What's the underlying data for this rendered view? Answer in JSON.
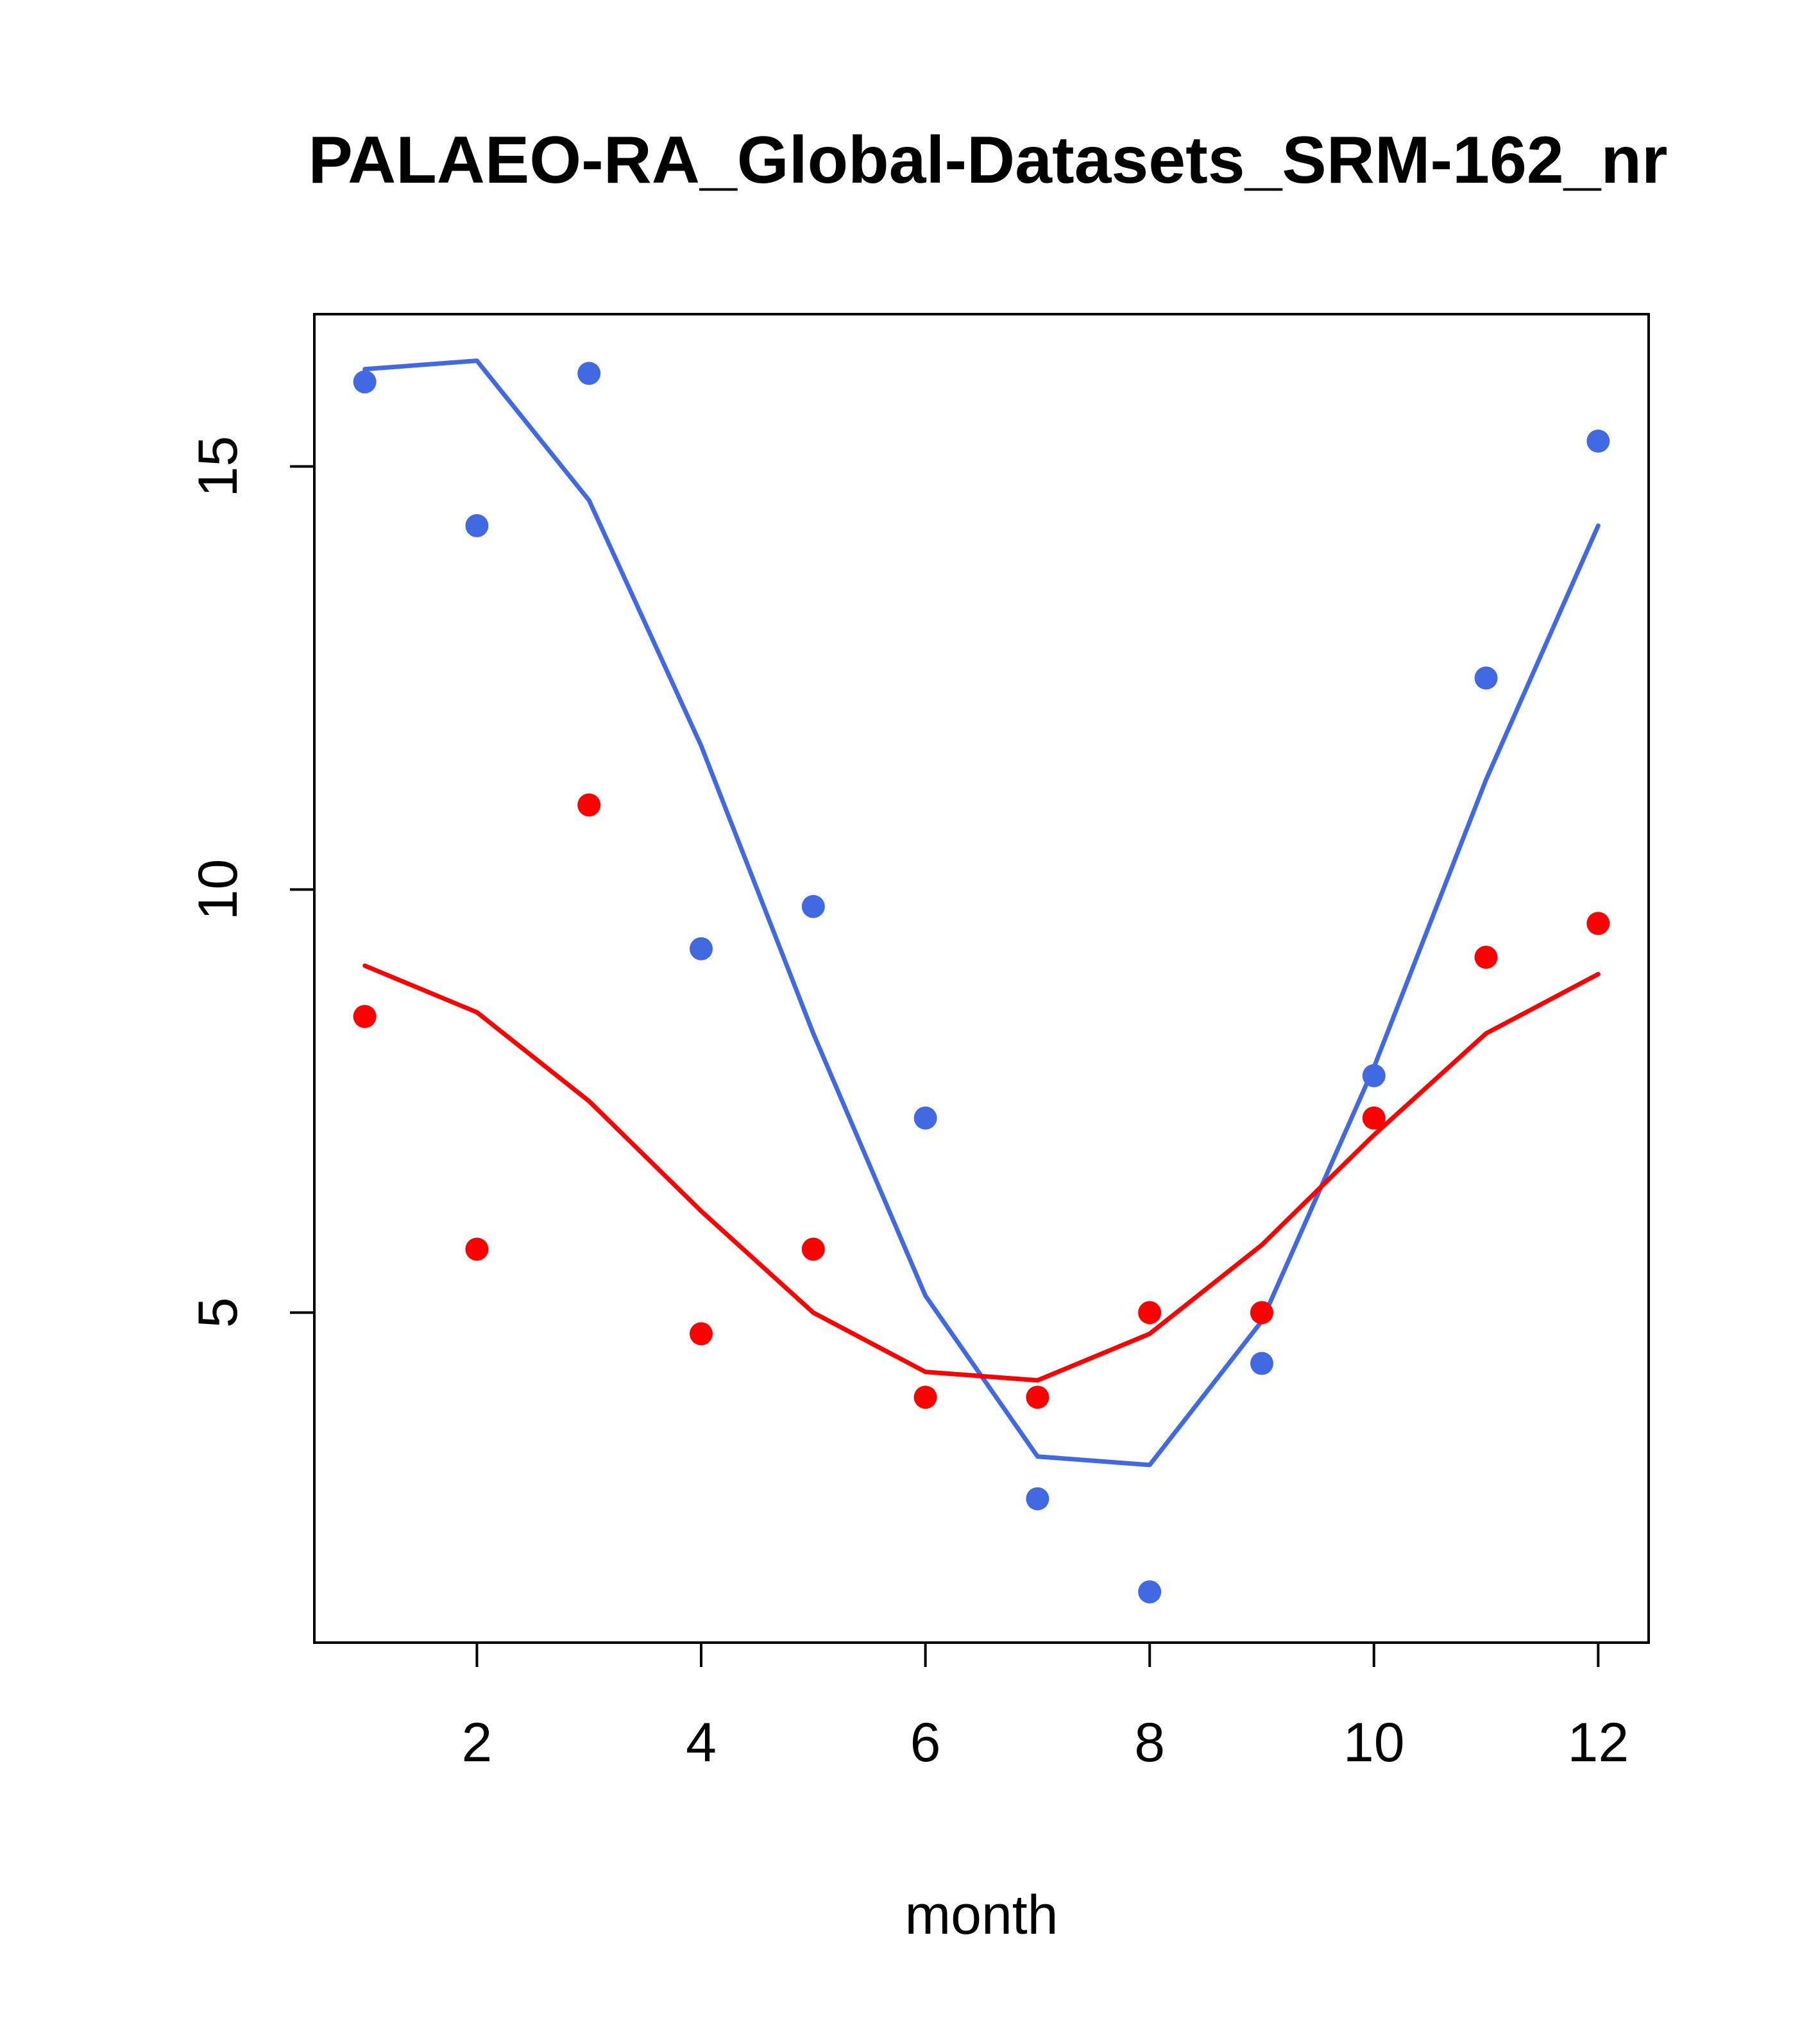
{
  "chart_data": {
    "type": "scatter",
    "title": "PALAEO-RA_Global-Datasets_SRM-162_nr",
    "xlabel": "month",
    "ylabel": "",
    "xlim": [
      0.55,
      12.45
    ],
    "ylim": [
      1.1,
      16.8
    ],
    "grid": false,
    "x_ticks": [
      2,
      4,
      6,
      8,
      10,
      12
    ],
    "x_tick_labels": [
      "2",
      "4",
      "6",
      "8",
      "10",
      "12"
    ],
    "y_ticks": [
      5,
      10,
      15
    ],
    "y_tick_labels": [
      "5",
      "10",
      "15"
    ],
    "x": [
      1,
      2,
      3,
      4,
      5,
      6,
      7,
      8,
      9,
      10,
      11,
      12
    ],
    "series": [
      {
        "name": "blue-points",
        "kind": "points",
        "color": "#4169e1",
        "values": [
          16.0,
          14.3,
          16.1,
          9.3,
          9.8,
          7.3,
          2.8,
          1.7,
          4.4,
          7.8,
          12.5,
          15.3
        ]
      },
      {
        "name": "blue-line",
        "kind": "line",
        "color": "#4169e1",
        "values": [
          16.15,
          16.25,
          14.6,
          11.7,
          8.3,
          5.2,
          3.3,
          3.2,
          4.9,
          7.9,
          11.3,
          14.3
        ]
      },
      {
        "name": "red-points",
        "kind": "points",
        "color": "#ff0000",
        "values": [
          8.5,
          5.75,
          11.0,
          4.75,
          5.75,
          4.0,
          4.0,
          5.0,
          5.0,
          7.3,
          9.2,
          9.6
        ]
      },
      {
        "name": "red-line",
        "kind": "line",
        "color": "#ff0000",
        "values": [
          9.1,
          8.55,
          7.5,
          6.2,
          5.0,
          4.3,
          4.2,
          4.75,
          5.8,
          7.1,
          8.3,
          9.0
        ]
      }
    ]
  }
}
